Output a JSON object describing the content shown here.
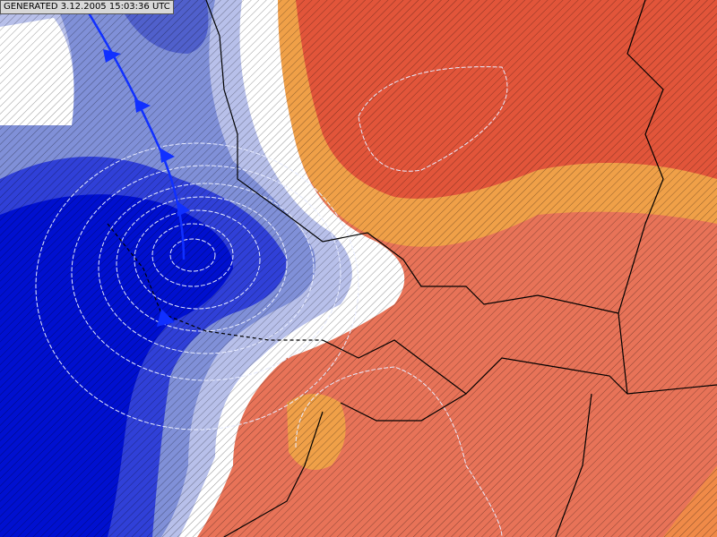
{
  "header": {
    "generated": "GENERATED 3.12.2005 15:03:36 UTC"
  }
}
